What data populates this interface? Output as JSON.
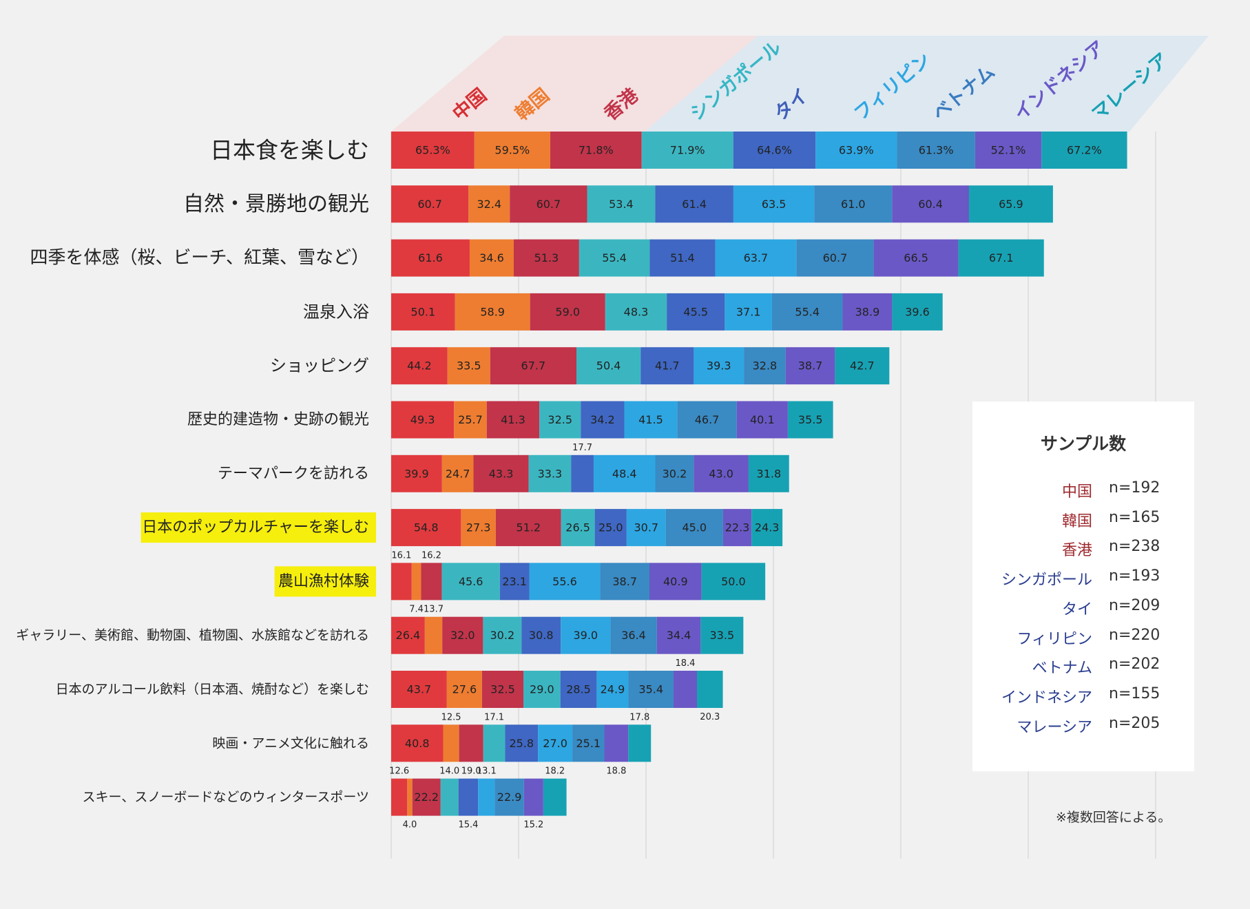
{
  "chart_data": {
    "type": "stacked-bar-horizontal",
    "value_unit": "%",
    "countries": [
      {
        "name": "中国",
        "color": "#e03a3e",
        "label_color": "#d62f34"
      },
      {
        "name": "韓国",
        "color": "#ee7d31",
        "label_color": "#ee7d31"
      },
      {
        "name": "香港",
        "color": "#c1344a",
        "label_color": "#c1344a"
      },
      {
        "name": "シンガポール",
        "color": "#3bb6c1",
        "label_color": "#36b6c4"
      },
      {
        "name": "タイ",
        "color": "#3f67c3",
        "label_color": "#3f5fb8"
      },
      {
        "name": "フィリピン",
        "color": "#2ea6e2",
        "label_color": "#2ea6e2"
      },
      {
        "name": "ベトナム",
        "color": "#3a8ac3",
        "label_color": "#3a7bbf"
      },
      {
        "name": "インドネシア",
        "color": "#6a58c6",
        "label_color": "#6a58c6"
      },
      {
        "name": "マレーシア",
        "color": "#17a2b4",
        "label_color": "#16a0b2"
      }
    ],
    "categories": [
      {
        "label": "日本食を楽しむ",
        "values": [
          65.3,
          59.5,
          71.8,
          71.9,
          64.6,
          63.9,
          61.3,
          52.1,
          67.2
        ],
        "display": [
          "65.3%",
          "59.5%",
          "71.8%",
          "71.9%",
          "64.6%",
          "63.9%",
          "61.3%",
          "52.1%",
          "67.2%"
        ]
      },
      {
        "label": "自然・景勝地の観光",
        "values": [
          60.7,
          32.4,
          60.7,
          53.4,
          61.4,
          63.5,
          61.0,
          60.4,
          65.9
        ],
        "display": [
          "60.7",
          "32.4",
          "60.7",
          "53.4",
          "61.4",
          "63.5",
          "61.0",
          "60.4",
          "65.9"
        ]
      },
      {
        "label": "四季を体感（桜、ビーチ、紅葉、雪など）",
        "values": [
          61.6,
          34.6,
          51.3,
          55.4,
          51.4,
          63.7,
          60.7,
          66.5,
          67.1
        ],
        "display": [
          "61.6",
          "34.6",
          "51.3",
          "55.4",
          "51.4",
          "63.7",
          "60.7",
          "66.5",
          "67.1"
        ]
      },
      {
        "label": "温泉入浴",
        "values": [
          50.1,
          58.9,
          59.0,
          48.3,
          45.5,
          37.1,
          55.4,
          38.9,
          39.6
        ],
        "display": [
          "50.1",
          "58.9",
          "59.0",
          "48.3",
          "45.5",
          "37.1",
          "55.4",
          "38.9",
          "39.6"
        ]
      },
      {
        "label": "ショッピング",
        "values": [
          44.2,
          33.5,
          67.7,
          50.4,
          41.7,
          39.3,
          32.8,
          38.7,
          42.7
        ],
        "display": [
          "44.2",
          "33.5",
          "67.7",
          "50.4",
          "41.7",
          "39.3",
          "32.8",
          "38.7",
          "42.7"
        ]
      },
      {
        "label": "歴史的建造物・史跡の観光",
        "values": [
          49.3,
          25.7,
          41.3,
          32.5,
          34.2,
          41.5,
          46.7,
          40.1,
          35.5
        ],
        "display": [
          "49.3",
          "25.7",
          "41.3",
          "32.5",
          "34.2",
          "41.5",
          "46.7",
          "40.1",
          "35.5"
        ]
      },
      {
        "label": "テーマパークを訪れる",
        "values": [
          39.9,
          24.7,
          43.3,
          33.3,
          17.7,
          48.4,
          30.2,
          43.0,
          31.8
        ],
        "display": [
          "39.9",
          "24.7",
          "43.3",
          "33.3",
          "17.7",
          "48.4",
          "30.2",
          "43.0",
          "31.8"
        ]
      },
      {
        "label": "日本のポップカルチャーを楽しむ",
        "highlight": true,
        "values": [
          54.8,
          27.3,
          51.2,
          26.5,
          25.0,
          30.7,
          45.0,
          22.3,
          24.3
        ],
        "display": [
          "54.8",
          "27.3",
          "51.2",
          "26.5",
          "25.0",
          "30.7",
          "45.0",
          "22.3",
          "24.3"
        ]
      },
      {
        "label": "農山漁村体験",
        "highlight": true,
        "values": [
          16.1,
          7.4,
          16.2,
          45.6,
          23.1,
          55.6,
          38.7,
          40.9,
          50.0
        ],
        "display": [
          "16.1",
          "7.4",
          "16.2",
          "45.6",
          "23.1",
          "55.6",
          "38.7",
          "40.9",
          "50.0"
        ]
      },
      {
        "label": "ギャラリー、美術館、動物園、植物園、水族館などを訪れる",
        "values": [
          26.4,
          13.7,
          32.0,
          30.2,
          30.8,
          39.0,
          36.4,
          34.4,
          33.5
        ],
        "display": [
          "26.4",
          "13.7",
          "32.0",
          "30.2",
          "30.8",
          "39.0",
          "36.4",
          "34.4",
          "33.5"
        ]
      },
      {
        "label": "日本のアルコール飲料（日本酒、焼酎など）を楽しむ",
        "values": [
          43.7,
          27.6,
          32.5,
          29.0,
          28.5,
          24.9,
          35.4,
          18.4,
          20.3
        ],
        "display": [
          "43.7",
          "27.6",
          "32.5",
          "29.0",
          "28.5",
          "24.9",
          "35.4",
          "18.4",
          "20.3"
        ]
      },
      {
        "label": "映画・アニメ文化に触れる",
        "values": [
          40.8,
          12.5,
          19.0,
          17.1,
          25.8,
          27.0,
          25.1,
          18.8,
          17.8
        ],
        "display": [
          "40.8",
          "12.5",
          "19.0",
          "17.1",
          "25.8",
          "27.0",
          "25.1",
          "18.8",
          "17.8"
        ]
      },
      {
        "label": "スキー、スノーボードなどのウィンタースポーツ",
        "values": [
          12.6,
          4.0,
          22.2,
          14.0,
          15.4,
          13.1,
          22.9,
          15.2,
          18.2
        ],
        "display": [
          "12.6",
          "4.0",
          "22.2",
          "14.0",
          "15.4",
          "13.1",
          "22.9",
          "15.2",
          "18.2"
        ]
      }
    ]
  },
  "legend": {
    "title": "サンプル数",
    "entries": [
      {
        "name": "中国",
        "n": "n=192",
        "color": "#9e2a2f"
      },
      {
        "name": "韓国",
        "n": "n=165",
        "color": "#9e2a2f"
      },
      {
        "name": "香港",
        "n": "n=238",
        "color": "#9e2a2f"
      },
      {
        "name": "シンガポール",
        "n": "n=193",
        "color": "#2a3d8f"
      },
      {
        "name": "タイ",
        "n": "n=209",
        "color": "#2a3d8f"
      },
      {
        "name": "フィリピン",
        "n": "n=220",
        "color": "#2a3d8f"
      },
      {
        "name": "ベトナム",
        "n": "n=202",
        "color": "#2a3d8f"
      },
      {
        "name": "インドネシア",
        "n": "n=155",
        "color": "#2a3d8f"
      },
      {
        "name": "マレーシア",
        "n": "n=205",
        "color": "#2a3d8f"
      }
    ]
  },
  "footnote": "※複数回答による。"
}
